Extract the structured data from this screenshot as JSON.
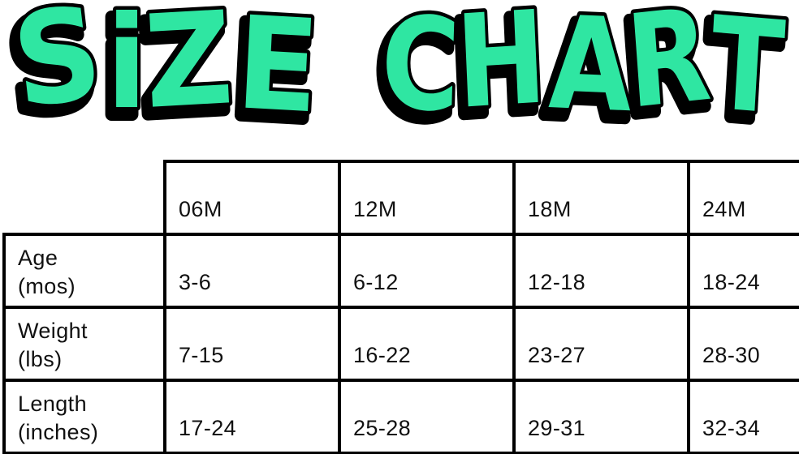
{
  "title": {
    "text": "SIZE CHART",
    "words": [
      "SiZE",
      "CHART"
    ]
  },
  "colors": {
    "title_fill": "#2FE6A2",
    "title_outline": "#000000",
    "table_border": "#000000",
    "table_text": "#111111",
    "background": "#FFFFFF"
  },
  "table": {
    "columns": [
      "06M",
      "12M",
      "18M",
      "24M"
    ],
    "rows": [
      {
        "label": "Age",
        "unit": "(mos)",
        "values": [
          "3-6",
          "6-12",
          "12-18",
          "18-24"
        ]
      },
      {
        "label": "Weight",
        "unit": "(lbs)",
        "values": [
          "7-15",
          "16-22",
          "23-27",
          "28-30"
        ]
      },
      {
        "label": "Length",
        "unit": "(inches)",
        "values": [
          "17-24",
          "25-28",
          "29-31",
          "32-34"
        ]
      }
    ]
  },
  "chart_data": {
    "type": "table",
    "title": "SIZE CHART",
    "columns": [
      "",
      "06M",
      "12M",
      "18M",
      "24M"
    ],
    "rows": [
      [
        "Age (mos)",
        "3-6",
        "6-12",
        "12-18",
        "18-24"
      ],
      [
        "Weight (lbs)",
        "7-15",
        "16-22",
        "23-27",
        "28-30"
      ],
      [
        "Length (inches)",
        "17-24",
        "25-28",
        "29-31",
        "32-34"
      ]
    ]
  }
}
